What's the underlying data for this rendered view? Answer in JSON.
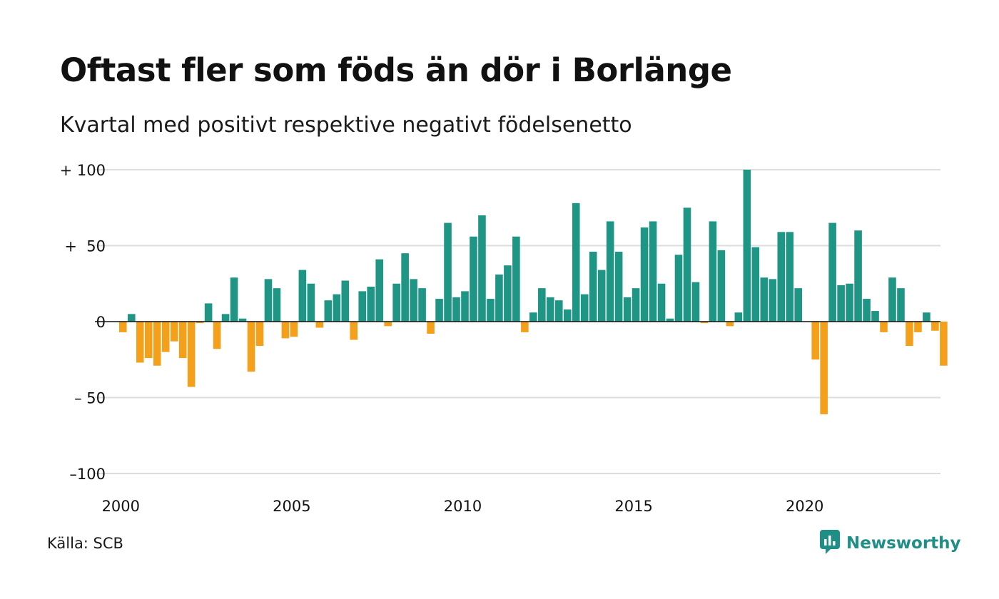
{
  "chart_data": {
    "type": "bar",
    "title": "Oftast fler som föds än dör i Borlänge",
    "subtitle": "Kvartal med positivt respektive negativt födelsenetto",
    "xlabel": "",
    "ylabel": "",
    "ylim": [
      -100,
      100
    ],
    "y_ticks": [
      {
        "value": 100,
        "label": "+ 100"
      },
      {
        "value": 50,
        "label": "+  50"
      },
      {
        "value": 0,
        "label": "0"
      },
      {
        "value": -50,
        "label": "– 50"
      },
      {
        "value": -100,
        "label": "–100"
      }
    ],
    "x_ticks": [
      {
        "year": 2000,
        "label": "2000"
      },
      {
        "year": 2005,
        "label": "2005"
      },
      {
        "year": 2010,
        "label": "2010"
      },
      {
        "year": 2015,
        "label": "2015"
      },
      {
        "year": 2020,
        "label": "2020"
      }
    ],
    "grid": true,
    "colors": {
      "positive": "#1f9585",
      "negative": "#f5a01b",
      "grid": "#dddddd",
      "axis": "#111111"
    },
    "quarters": [
      "2000 Q1",
      "2000 Q2",
      "2000 Q3",
      "2000 Q4",
      "2001 Q1",
      "2001 Q2",
      "2001 Q3",
      "2001 Q4",
      "2002 Q1",
      "2002 Q2",
      "2002 Q3",
      "2002 Q4",
      "2003 Q1",
      "2003 Q2",
      "2003 Q3",
      "2003 Q4",
      "2004 Q1",
      "2004 Q2",
      "2004 Q3",
      "2004 Q4",
      "2005 Q1",
      "2005 Q2",
      "2005 Q3",
      "2005 Q4",
      "2006 Q1",
      "2006 Q2",
      "2006 Q3",
      "2006 Q4",
      "2007 Q1",
      "2007 Q2",
      "2007 Q3",
      "2007 Q4",
      "2008 Q1",
      "2008 Q2",
      "2008 Q3",
      "2008 Q4",
      "2009 Q1",
      "2009 Q2",
      "2009 Q3",
      "2009 Q4",
      "2010 Q1",
      "2010 Q2",
      "2010 Q3",
      "2010 Q4",
      "2011 Q1",
      "2011 Q2",
      "2011 Q3",
      "2011 Q4",
      "2012 Q1",
      "2012 Q2",
      "2012 Q3",
      "2012 Q4",
      "2013 Q1",
      "2013 Q2",
      "2013 Q3",
      "2013 Q4",
      "2014 Q1",
      "2014 Q2",
      "2014 Q3",
      "2014 Q4",
      "2015 Q1",
      "2015 Q2",
      "2015 Q3",
      "2015 Q4",
      "2016 Q1",
      "2016 Q2",
      "2016 Q3",
      "2016 Q4",
      "2017 Q1",
      "2017 Q2",
      "2017 Q3",
      "2017 Q4",
      "2018 Q1",
      "2018 Q2",
      "2018 Q3",
      "2018 Q4",
      "2019 Q1",
      "2019 Q2",
      "2019 Q3",
      "2019 Q4",
      "2020 Q1",
      "2020 Q2",
      "2020 Q3",
      "2020 Q4",
      "2021 Q1",
      "2021 Q2",
      "2021 Q3",
      "2021 Q4",
      "2022 Q1",
      "2022 Q2",
      "2022 Q3",
      "2022 Q4",
      "2023 Q1",
      "2023 Q2",
      "2023 Q3",
      "2023 Q4",
      "2024 Q1"
    ],
    "values": [
      -7,
      5,
      -27,
      -24,
      -29,
      -20,
      -13,
      -24,
      -43,
      -1,
      12,
      -18,
      5,
      29,
      2,
      -33,
      -16,
      28,
      22,
      -11,
      -10,
      34,
      25,
      -4,
      14,
      18,
      27,
      -12,
      20,
      23,
      41,
      -3,
      25,
      45,
      28,
      22,
      -8,
      15,
      65,
      16,
      20,
      56,
      70,
      15,
      31,
      37,
      56,
      -7,
      6,
      22,
      16,
      14,
      8,
      78,
      18,
      46,
      34,
      66,
      46,
      16,
      22,
      62,
      66,
      25,
      2,
      44,
      75,
      26,
      -1,
      66,
      47,
      -3,
      6,
      100,
      49,
      29,
      28,
      59,
      59,
      22,
      0,
      -25,
      -61,
      65,
      24,
      25,
      60,
      15,
      7,
      -7,
      29,
      22,
      -16,
      -7,
      6,
      -6,
      -29
    ]
  },
  "footer": {
    "source": "Källa: SCB",
    "brand": "Newsworthy",
    "brand_color": "#1f8f86",
    "brand_icon": "bar-chart-speech-icon"
  }
}
